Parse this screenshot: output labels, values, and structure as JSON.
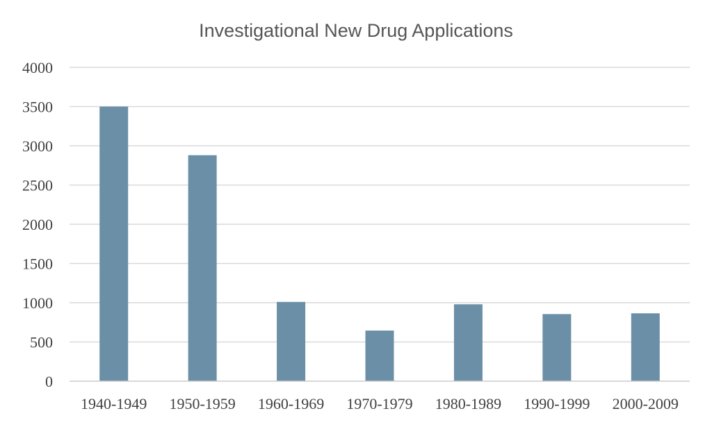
{
  "chart_data": {
    "type": "bar",
    "title": "Investigational New Drug Applications",
    "xlabel": "",
    "ylabel": "",
    "categories": [
      "1940-1949",
      "1950-1959",
      "1960-1969",
      "1970-1979",
      "1980-1989",
      "1990-1999",
      "2000-2009"
    ],
    "values": [
      3500,
      2880,
      1010,
      645,
      980,
      855,
      865
    ],
    "ylim": [
      0,
      4000
    ],
    "yticks": [
      0,
      500,
      1000,
      1500,
      2000,
      2500,
      3000,
      3500,
      4000
    ],
    "grid": true,
    "legend": "none",
    "bar_color": "#6b8fa6"
  }
}
